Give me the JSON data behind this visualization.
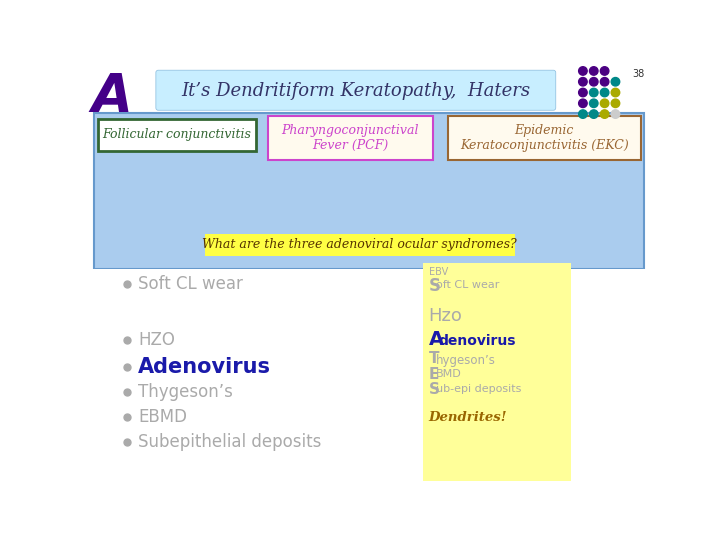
{
  "title_letter": "A",
  "title_text": "It’s Dendritiform Keratopathy,  Haters",
  "title_bg": "#c8eeff",
  "slide_number": "38",
  "box1_text": "Follicular conjunctivitis",
  "box1_bg": "#ffffff",
  "box1_border": "#336633",
  "box1_color": "#336633",
  "box2_text": "Pharyngoconjunctival\nFever (PCF)",
  "box2_bg": "#fffaee",
  "box2_border": "#cc44cc",
  "box2_color": "#cc44cc",
  "box3_text": "Epidemic\nKeratoconjunctivitis (EKC)",
  "box3_bg": "#fffaee",
  "box3_border": "#996633",
  "box3_color": "#996633",
  "blue_bg": "#aaccee",
  "yellow_box_text": "What are the three adenoviral ocular syndromes?",
  "yellow_box_bg": "#ffff44",
  "white_bg": "#ffffff",
  "right_col_bg": "#ffff99",
  "bullet_color": "#aaaaaa",
  "adenovirus_color": "#1a1aaa",
  "dendrites_color": "#996600"
}
